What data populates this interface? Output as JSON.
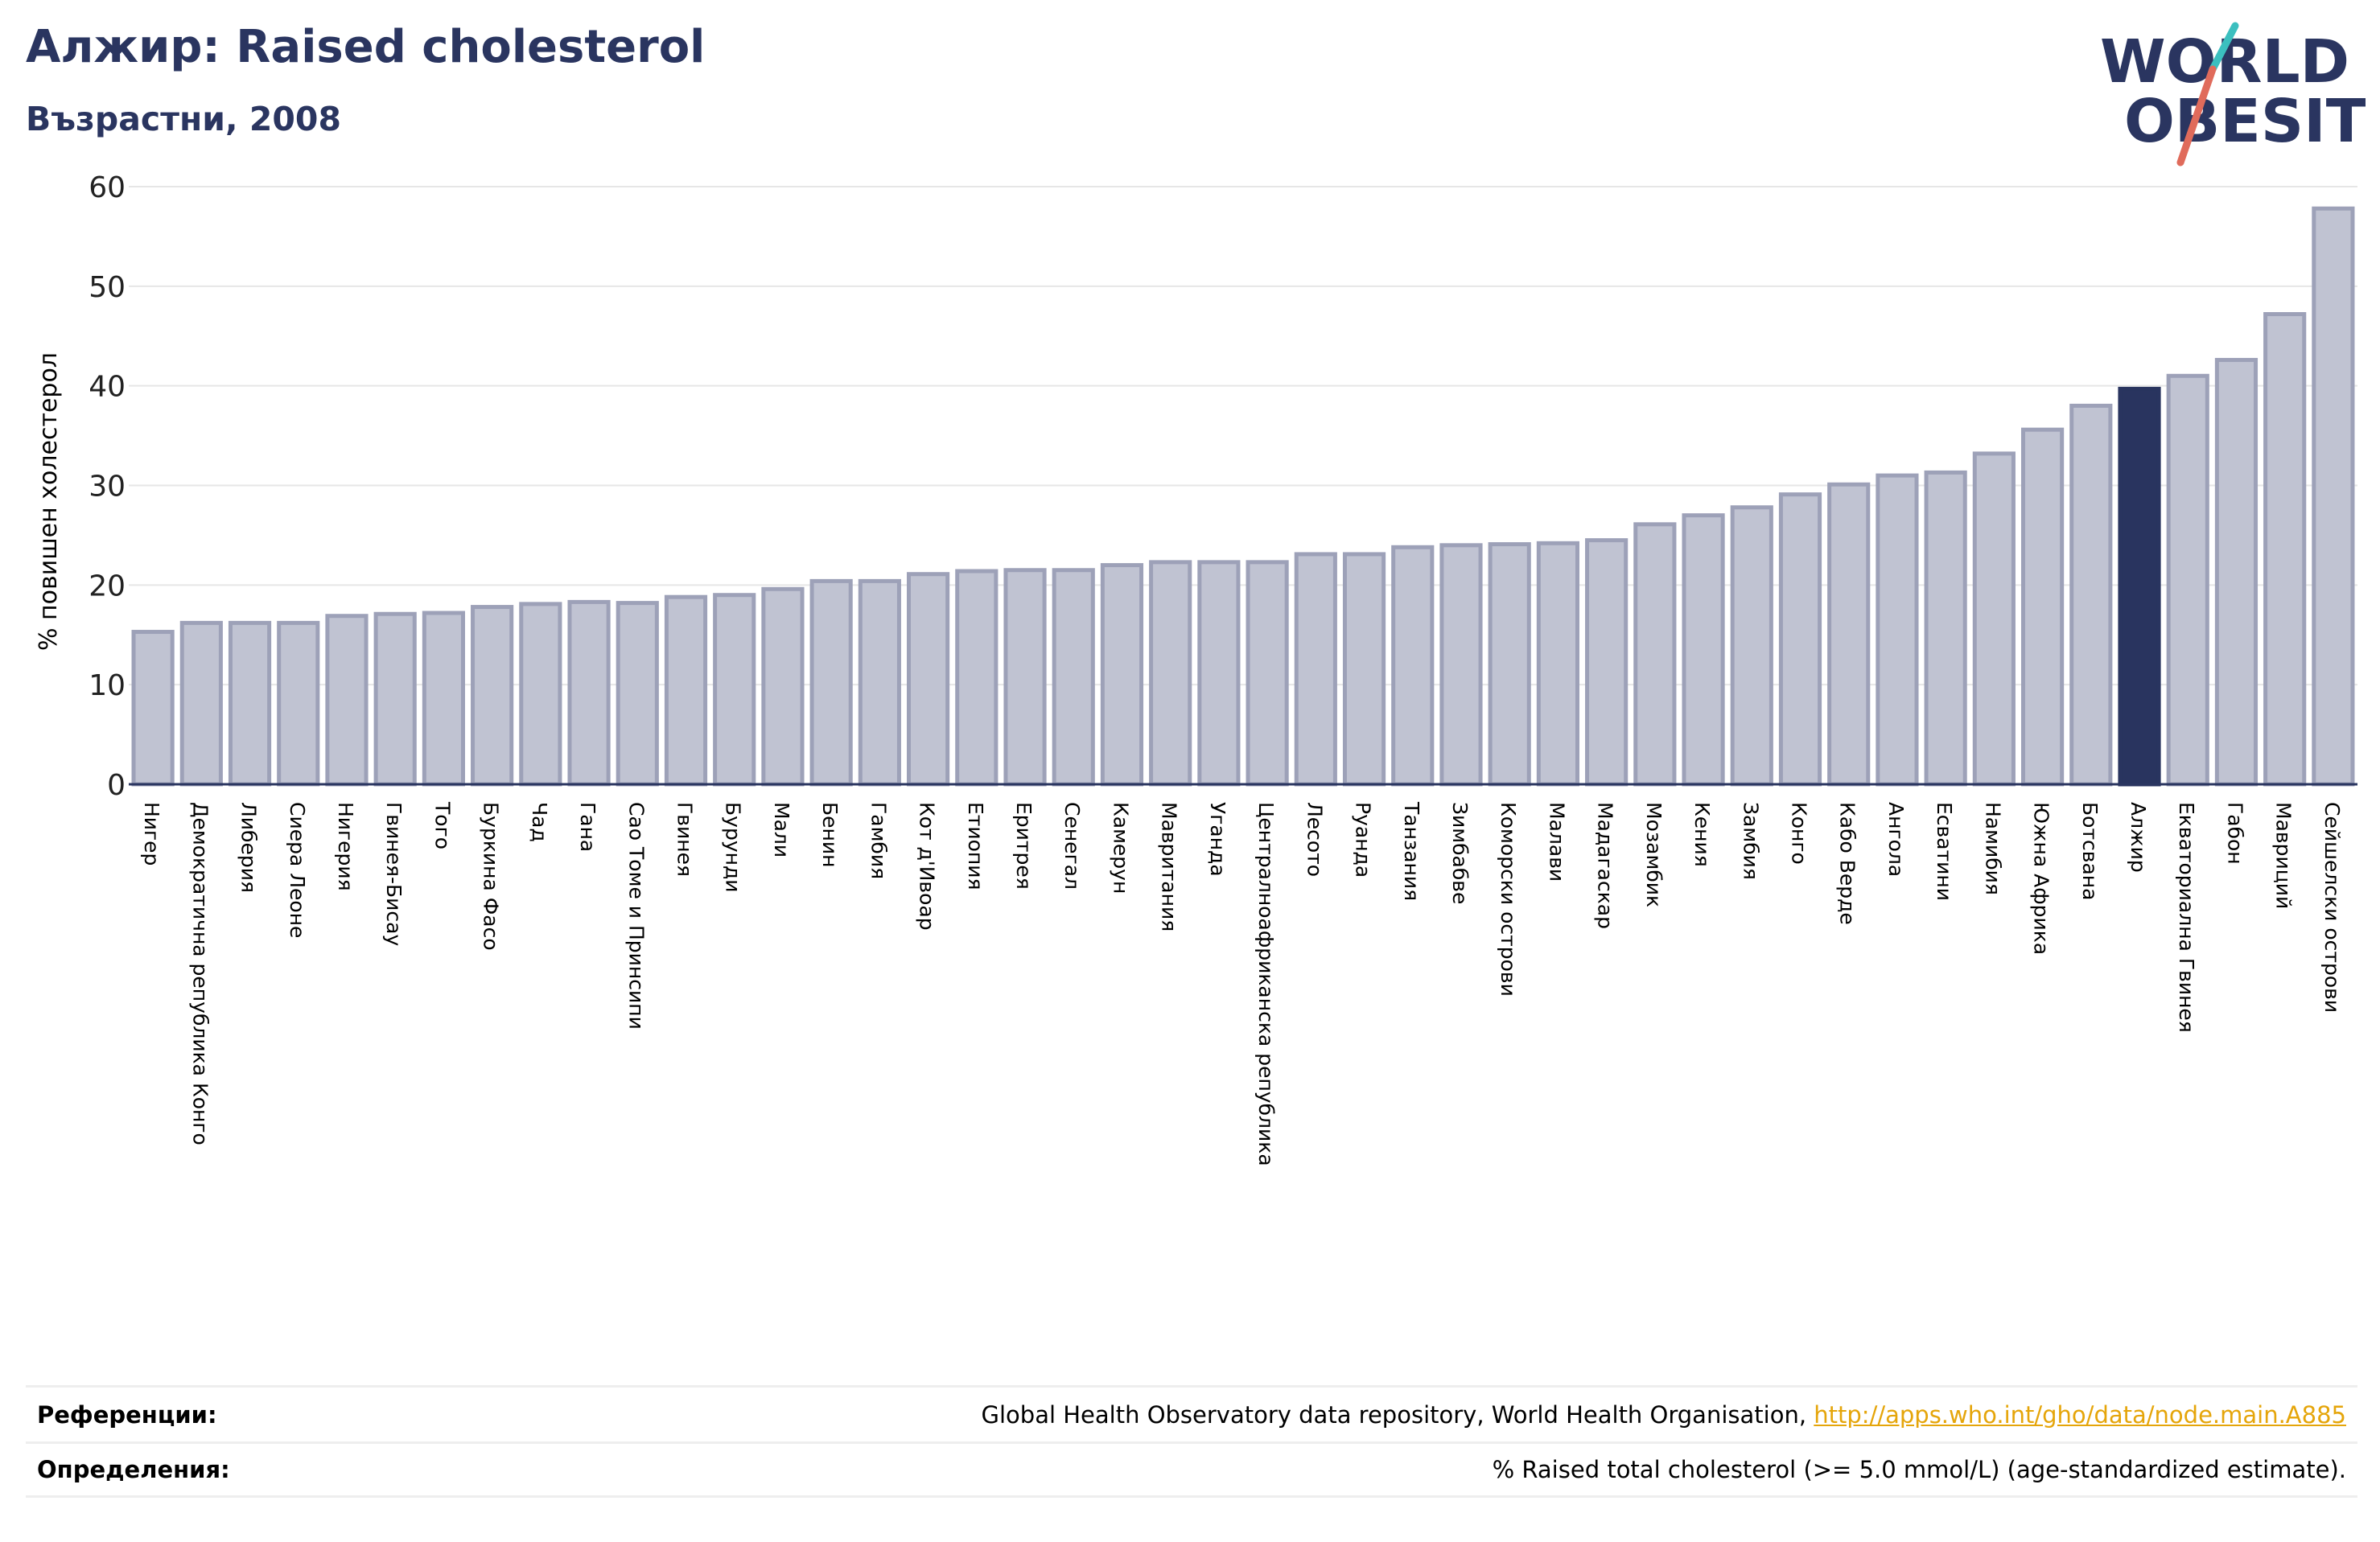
{
  "header": {
    "title": "Алжир: Raised cholesterol",
    "subtitle": "Възрастни, 2008"
  },
  "logo": {
    "line1": "WORLD",
    "line2": "OBESITY"
  },
  "colors": {
    "title": "#2a3560",
    "bar": "#c0c3d2",
    "bar_edge": "#9da1b8",
    "highlight": "#29345f",
    "link": "#e5a50a",
    "logo_text": "#2a3560",
    "logo_slash_teal": "#3bbfbf",
    "logo_slash_red": "#e06b5b"
  },
  "chart_data": {
    "type": "bar",
    "ylabel": "% повишен холестерол",
    "ylim": [
      0,
      60
    ],
    "yticks": [
      0,
      10,
      20,
      30,
      40,
      50,
      60
    ],
    "grid": true,
    "highlight": "Алжир",
    "categories": [
      "Нигер",
      "Демократична република Конго",
      "Либерия",
      "Сиера Леоне",
      "Нигерия",
      "Гвинея-Бисау",
      "Того",
      "Буркина Фасо",
      "Чад",
      "Гана",
      "Сао Томе и Принсипи",
      "Гвинея",
      "Бурунди",
      "Мали",
      "Бенин",
      "Гамбия",
      "Кот д'Ивоар",
      "Етиопия",
      "Еритрея",
      "Сенегал",
      "Камерун",
      "Мавритания",
      "Уганда",
      "Централноафриканска република",
      "Лесото",
      "Руанда",
      "Танзания",
      "Зимбабве",
      "Коморски острови",
      "Малави",
      "Мадагаскар",
      "Мозамбик",
      "Кения",
      "Замбия",
      "Конго",
      "Кабо Верде",
      "Ангола",
      "Есватини",
      "Намибия",
      "Южна Африка",
      "Ботсвана",
      "Алжир",
      "Екваториална Гвинея",
      "Габон",
      "Мавриций",
      "Сейшелски острови"
    ],
    "values": [
      15.3,
      16.2,
      16.2,
      16.2,
      16.9,
      17.1,
      17.2,
      17.8,
      18.1,
      18.3,
      18.2,
      18.8,
      19.0,
      19.6,
      20.4,
      20.4,
      21.1,
      21.4,
      21.5,
      21.5,
      22.0,
      22.3,
      22.3,
      22.3,
      23.1,
      23.1,
      23.8,
      24.0,
      24.1,
      24.2,
      24.5,
      26.1,
      27.0,
      27.8,
      29.1,
      30.1,
      31.0,
      31.3,
      33.2,
      35.6,
      38.0,
      39.7,
      41.0,
      42.6,
      47.2,
      57.8
    ]
  },
  "footer": {
    "references_label": "Референции:",
    "references_text": "Global Health Observatory data repository, World Health Organisation, ",
    "references_link": "http://apps.who.int/gho/data/node.main.A885",
    "definitions_label": "Определения:",
    "definitions_text": "% Raised total cholesterol (>= 5.0 mmol/L) (age-standardized estimate)."
  }
}
